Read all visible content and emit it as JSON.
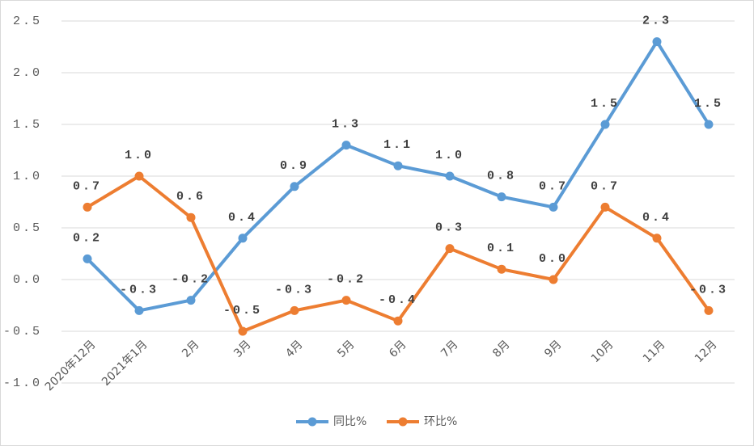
{
  "chart_data": {
    "type": "line",
    "categories": [
      "2020年12月",
      "2021年1月",
      "2月",
      "3月",
      "4月",
      "5月",
      "6月",
      "7月",
      "8月",
      "9月",
      "10月",
      "11月",
      "12月"
    ],
    "series": [
      {
        "name": "同比%",
        "color": "#5b9bd5",
        "values": [
          0.2,
          -0.3,
          -0.2,
          0.4,
          0.9,
          1.3,
          1.1,
          1.0,
          0.8,
          0.7,
          1.5,
          2.3,
          1.5
        ],
        "value_labels": [
          "0.2",
          "-0.3",
          "-0.2",
          "0.4",
          "0.9",
          "1.3",
          "1.1",
          "1.0",
          "0.8",
          "0.7",
          "1.5",
          "2.3",
          "1.5"
        ]
      },
      {
        "name": "环比%",
        "color": "#ed7d31",
        "values": [
          0.7,
          1.0,
          0.6,
          -0.5,
          -0.3,
          -0.2,
          -0.4,
          0.3,
          0.1,
          0.0,
          0.7,
          0.4,
          -0.3
        ],
        "value_labels": [
          "0.7",
          "1.0",
          "0.6",
          "-0.5",
          "-0.3",
          "-0.2",
          "-0.4",
          "0.3",
          "0.1",
          "0.0",
          "0.7",
          "0.4",
          "-0.3"
        ]
      }
    ],
    "ylim": [
      -1.0,
      2.5
    ],
    "yticks": [
      {
        "value": -1.0,
        "label": "-1.0"
      },
      -0.5,
      {
        "value": 0,
        "label": "0.0"
      },
      0.5,
      {
        "value": 1.0,
        "label": "1.0"
      },
      1.5,
      {
        "value": 2.0,
        "label": "2.0"
      },
      2.5
    ],
    "grid": true,
    "legend": "bottom"
  }
}
